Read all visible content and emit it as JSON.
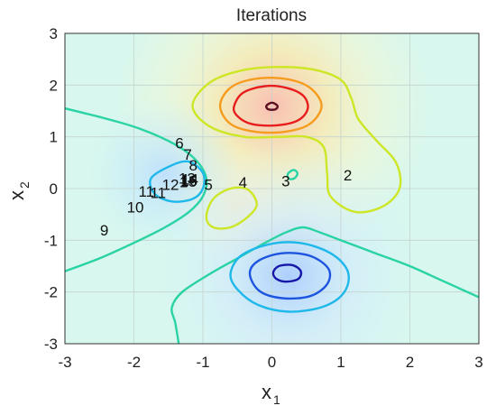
{
  "chart_data": {
    "type": "contour",
    "title": "Iterations",
    "xlabel": {
      "base": "x",
      "sub": "1"
    },
    "ylabel": {
      "base": "x",
      "sub": "2"
    },
    "xlim": [
      -3,
      3
    ],
    "ylim": [
      -3,
      3
    ],
    "xticks": [
      "-3",
      "-2",
      "-1",
      "0",
      "1",
      "2",
      "3"
    ],
    "yticks": [
      "-3",
      "-2",
      "-1",
      "0",
      "1",
      "2",
      "3"
    ],
    "grid": true,
    "background_colormap": "pale jet (blue low, red high)",
    "peak": {
      "x": 0.0,
      "y": 1.58
    },
    "trough": {
      "x": 0.23,
      "y": -1.63
    },
    "contours": [
      {
        "color": "#2ad3a4",
        "points": [
          [
            -3.0,
            1.55
          ],
          [
            -2.4,
            1.35
          ],
          [
            -1.9,
            1.15
          ],
          [
            -1.4,
            0.85
          ],
          [
            -1.1,
            0.55
          ],
          [
            -0.95,
            0.2
          ],
          [
            -1.0,
            -0.15
          ],
          [
            -1.2,
            -0.45
          ],
          [
            -1.55,
            -0.75
          ],
          [
            -2.0,
            -1.05
          ],
          [
            -2.5,
            -1.35
          ],
          [
            -3.0,
            -1.6
          ]
        ]
      },
      {
        "color": "#2ad3a4",
        "points": [
          [
            -1.35,
            -3.0
          ],
          [
            -1.4,
            -2.6
          ],
          [
            -1.45,
            -2.3
          ],
          [
            -1.3,
            -2.0
          ],
          [
            -0.9,
            -1.65
          ],
          [
            -0.5,
            -1.35
          ],
          [
            -0.1,
            -1.05
          ],
          [
            0.2,
            -0.85
          ],
          [
            0.45,
            -0.75
          ],
          [
            0.7,
            -0.85
          ],
          [
            1.1,
            -1.05
          ],
          [
            1.5,
            -1.25
          ],
          [
            2.0,
            -1.5
          ],
          [
            2.5,
            -1.8
          ],
          [
            3.0,
            -2.1
          ]
        ]
      },
      {
        "color": "#2ad3a4",
        "closed": true,
        "points": [
          [
            0.23,
            0.28
          ],
          [
            0.31,
            0.36
          ],
          [
            0.37,
            0.3
          ],
          [
            0.33,
            0.2
          ],
          [
            0.25,
            0.19
          ]
        ]
      },
      {
        "color": "#cde626",
        "closed": true,
        "points": [
          [
            -1.15,
            1.6
          ],
          [
            -0.9,
            2.05
          ],
          [
            -0.45,
            2.28
          ],
          [
            0.05,
            2.35
          ],
          [
            0.6,
            2.3
          ],
          [
            1.0,
            2.1
          ],
          [
            1.15,
            1.75
          ],
          [
            1.25,
            1.35
          ],
          [
            1.5,
            0.95
          ],
          [
            1.8,
            0.5
          ],
          [
            1.85,
            0.0
          ],
          [
            1.6,
            -0.35
          ],
          [
            1.2,
            -0.45
          ],
          [
            0.85,
            -0.15
          ],
          [
            0.8,
            0.3
          ],
          [
            0.75,
            0.8
          ],
          [
            0.5,
            1.0
          ],
          [
            0.1,
            1.0
          ],
          [
            -0.4,
            1.0
          ],
          [
            -0.9,
            1.2
          ]
        ]
      },
      {
        "color": "#cde626",
        "closed": true,
        "points": [
          [
            -0.95,
            -0.55
          ],
          [
            -0.85,
            -0.2
          ],
          [
            -0.6,
            0.0
          ],
          [
            -0.35,
            -0.02
          ],
          [
            -0.22,
            -0.3
          ],
          [
            -0.35,
            -0.55
          ],
          [
            -0.6,
            -0.75
          ],
          [
            -0.85,
            -0.75
          ]
        ]
      },
      {
        "color": "#f59b1e",
        "closed": true,
        "points": [
          [
            -0.75,
            1.6
          ],
          [
            -0.6,
            1.95
          ],
          [
            -0.25,
            2.12
          ],
          [
            0.2,
            2.12
          ],
          [
            0.55,
            1.95
          ],
          [
            0.72,
            1.6
          ],
          [
            0.55,
            1.25
          ],
          [
            0.2,
            1.1
          ],
          [
            -0.25,
            1.1
          ],
          [
            -0.6,
            1.25
          ]
        ]
      },
      {
        "color": "#e81e1e",
        "closed": true,
        "points": [
          [
            -0.55,
            1.58
          ],
          [
            -0.42,
            1.85
          ],
          [
            -0.1,
            1.98
          ],
          [
            0.2,
            1.95
          ],
          [
            0.45,
            1.8
          ],
          [
            0.52,
            1.55
          ],
          [
            0.38,
            1.32
          ],
          [
            0.05,
            1.22
          ],
          [
            -0.3,
            1.25
          ],
          [
            -0.5,
            1.4
          ]
        ]
      },
      {
        "color": "#5a1020",
        "closed": true,
        "points": [
          [
            -0.08,
            1.6
          ],
          [
            0.0,
            1.66
          ],
          [
            0.08,
            1.6
          ],
          [
            0.05,
            1.53
          ],
          [
            -0.05,
            1.53
          ]
        ]
      },
      {
        "color": "#1fb8ea",
        "closed": true,
        "points": [
          [
            -1.45,
            0.45
          ],
          [
            -1.2,
            0.52
          ],
          [
            -1.0,
            0.3
          ],
          [
            -1.0,
            0.0
          ],
          [
            -1.15,
            -0.2
          ],
          [
            -1.45,
            -0.25
          ],
          [
            -1.7,
            -0.1
          ],
          [
            -1.75,
            0.2
          ]
        ]
      },
      {
        "color": "#1fb8ea",
        "closed": true,
        "points": [
          [
            -0.6,
            -1.65
          ],
          [
            -0.45,
            -1.3
          ],
          [
            -0.05,
            -1.08
          ],
          [
            0.4,
            -1.05
          ],
          [
            0.85,
            -1.25
          ],
          [
            1.1,
            -1.6
          ],
          [
            1.05,
            -2.0
          ],
          [
            0.75,
            -2.28
          ],
          [
            0.25,
            -2.38
          ],
          [
            -0.2,
            -2.25
          ],
          [
            -0.5,
            -1.95
          ]
        ]
      },
      {
        "color": "#1d55e0",
        "closed": true,
        "points": [
          [
            -0.32,
            -1.65
          ],
          [
            -0.2,
            -1.4
          ],
          [
            0.15,
            -1.25
          ],
          [
            0.55,
            -1.3
          ],
          [
            0.82,
            -1.55
          ],
          [
            0.8,
            -1.85
          ],
          [
            0.55,
            -2.08
          ],
          [
            0.15,
            -2.12
          ],
          [
            -0.18,
            -1.98
          ]
        ]
      },
      {
        "color": "#1616a8",
        "closed": true,
        "points": [
          [
            0.02,
            -1.62
          ],
          [
            0.1,
            -1.5
          ],
          [
            0.3,
            -1.48
          ],
          [
            0.42,
            -1.6
          ],
          [
            0.38,
            -1.75
          ],
          [
            0.2,
            -1.8
          ],
          [
            0.06,
            -1.74
          ]
        ]
      }
    ],
    "iterations": [
      {
        "label": "1",
        "x": -1.28,
        "y": 0.13
      },
      {
        "label": "2",
        "x": 1.1,
        "y": 0.26
      },
      {
        "label": "3",
        "x": 0.2,
        "y": 0.15
      },
      {
        "label": "4",
        "x": -0.42,
        "y": 0.12
      },
      {
        "label": "5",
        "x": -0.92,
        "y": 0.08
      },
      {
        "label": "6",
        "x": -1.34,
        "y": 0.88
      },
      {
        "label": "7",
        "x": -1.22,
        "y": 0.66
      },
      {
        "label": "8",
        "x": -1.14,
        "y": 0.45
      },
      {
        "label": "9",
        "x": -2.43,
        "y": -0.8
      },
      {
        "label": "10",
        "x": -1.98,
        "y": -0.36
      },
      {
        "label": "11",
        "x": -1.82,
        "y": -0.05
      },
      {
        "label": "11",
        "x": -1.65,
        "y": -0.08
      },
      {
        "label": "12",
        "x": -1.47,
        "y": 0.08
      },
      {
        "label": "13",
        "x": -1.23,
        "y": 0.2
      },
      {
        "label": "14",
        "x": -1.19,
        "y": 0.18
      },
      {
        "label": "15",
        "x": -1.21,
        "y": 0.14
      },
      {
        "label": "16",
        "x": -1.2,
        "y": 0.16
      }
    ]
  }
}
